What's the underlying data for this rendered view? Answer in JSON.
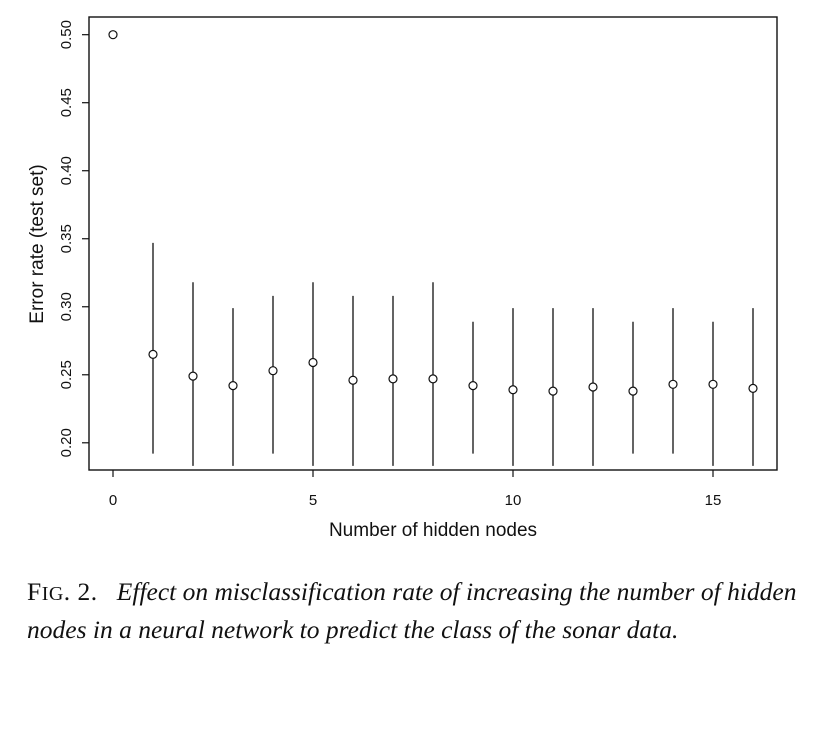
{
  "chart_data": {
    "type": "scatter",
    "xlabel": "Number of hidden nodes",
    "ylabel": "Error rate (test set)",
    "xlim": [
      -0.6,
      16.6
    ],
    "ylim": [
      0.18,
      0.513
    ],
    "xticks": [
      "0",
      "5",
      "10",
      "15"
    ],
    "yticks": [
      "0.20",
      "0.25",
      "0.30",
      "0.35",
      "0.40",
      "0.45",
      "0.50"
    ],
    "error_bars": true,
    "grid": false,
    "series": [
      {
        "points": [
          {
            "x": 0,
            "y": 0.5,
            "lower": null,
            "upper": null
          },
          {
            "x": 1,
            "y": 0.265,
            "lower": 0.192,
            "upper": 0.347
          },
          {
            "x": 2,
            "y": 0.249,
            "lower": 0.183,
            "upper": 0.318
          },
          {
            "x": 3,
            "y": 0.242,
            "lower": 0.183,
            "upper": 0.299
          },
          {
            "x": 4,
            "y": 0.253,
            "lower": 0.192,
            "upper": 0.308
          },
          {
            "x": 5,
            "y": 0.259,
            "lower": 0.183,
            "upper": 0.318
          },
          {
            "x": 6,
            "y": 0.246,
            "lower": 0.183,
            "upper": 0.308
          },
          {
            "x": 7,
            "y": 0.247,
            "lower": 0.183,
            "upper": 0.308
          },
          {
            "x": 8,
            "y": 0.247,
            "lower": 0.183,
            "upper": 0.318
          },
          {
            "x": 9,
            "y": 0.242,
            "lower": 0.192,
            "upper": 0.289
          },
          {
            "x": 10,
            "y": 0.239,
            "lower": 0.183,
            "upper": 0.299
          },
          {
            "x": 11,
            "y": 0.238,
            "lower": 0.183,
            "upper": 0.299
          },
          {
            "x": 12,
            "y": 0.241,
            "lower": 0.183,
            "upper": 0.299
          },
          {
            "x": 13,
            "y": 0.238,
            "lower": 0.192,
            "upper": 0.289
          },
          {
            "x": 14,
            "y": 0.243,
            "lower": 0.192,
            "upper": 0.299
          },
          {
            "x": 15,
            "y": 0.243,
            "lower": 0.183,
            "upper": 0.289
          },
          {
            "x": 16,
            "y": 0.24,
            "lower": 0.183,
            "upper": 0.299
          }
        ]
      }
    ]
  },
  "caption": {
    "label_first": "F",
    "label_rest": "IG",
    "label_num": ". 2.",
    "text": "Effect on misclassification rate of increasing the number of hidden nodes in a neural network to predict the class of the sonar data."
  }
}
